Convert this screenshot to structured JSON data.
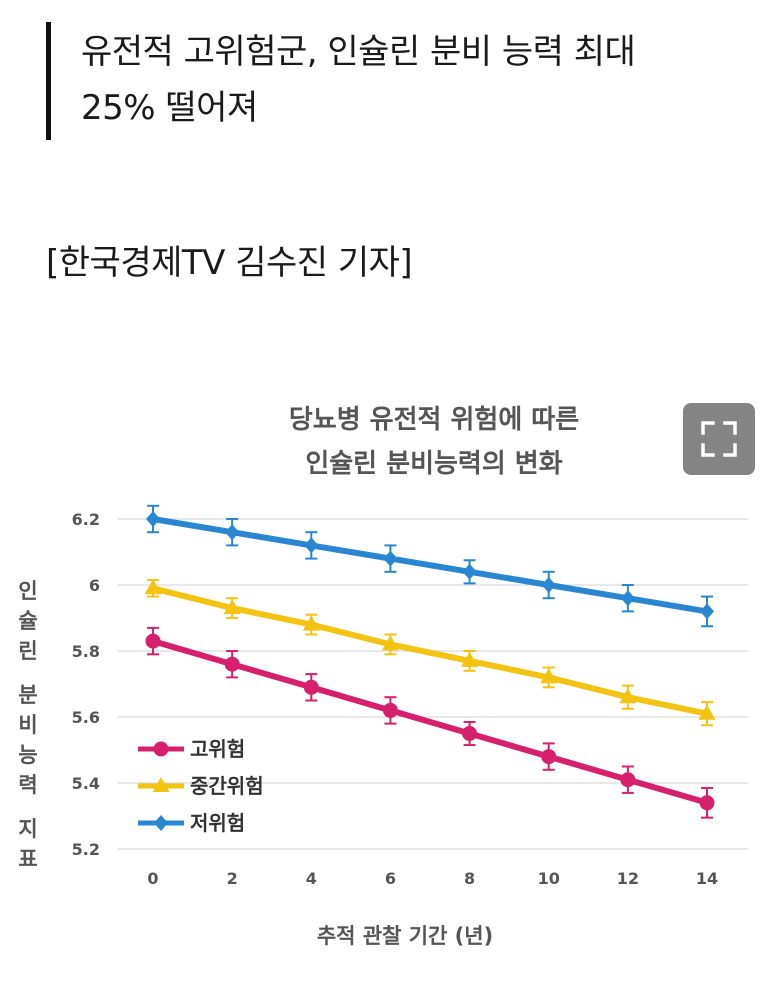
{
  "article": {
    "headline_line1": "유전적 고위험군, 인슐린 분비 능력 최대",
    "headline_line2": "25% 떨어져",
    "byline": "[한국경제TV 김수진 기자]"
  },
  "expand_button": {
    "icon": "expand-icon",
    "color": "#6e6e6e"
  },
  "chart_data": {
    "type": "line",
    "title_lines": [
      "당뇨병 유전적 위험에 따른",
      "인슐린 분비능력의 변화"
    ],
    "xlabel": "추적 관찰 기간 (년)",
    "ylabel": "인슐린 분비능력 지표",
    "x": [
      0,
      2,
      4,
      6,
      8,
      10,
      12,
      14
    ],
    "xticks": [
      "0",
      "2",
      "4",
      "6",
      "8",
      "10",
      "12",
      "14"
    ],
    "yticks": [
      "5.2",
      "5.4",
      "5.6",
      "5.8",
      "6",
      "6.2"
    ],
    "ylim": [
      5.2,
      6.2
    ],
    "grid": true,
    "legend_position": "bottom-left",
    "series": [
      {
        "name": "고위험",
        "color": "#d6206d",
        "marker": "circle",
        "values": [
          5.83,
          5.76,
          5.69,
          5.62,
          5.55,
          5.48,
          5.41,
          5.34
        ],
        "error": [
          0.04,
          0.04,
          0.04,
          0.04,
          0.035,
          0.04,
          0.04,
          0.045
        ]
      },
      {
        "name": "중간위험",
        "color": "#f2c313",
        "marker": "triangle",
        "values": [
          5.99,
          5.93,
          5.88,
          5.82,
          5.77,
          5.72,
          5.66,
          5.61
        ],
        "error": [
          0.025,
          0.03,
          0.03,
          0.03,
          0.03,
          0.03,
          0.035,
          0.035
        ]
      },
      {
        "name": "저위험",
        "color": "#2a86d1",
        "marker": "diamond",
        "values": [
          6.2,
          6.16,
          6.12,
          6.08,
          6.04,
          6.0,
          5.96,
          5.92
        ],
        "error": [
          0.04,
          0.04,
          0.04,
          0.04,
          0.035,
          0.04,
          0.04,
          0.045
        ]
      }
    ]
  }
}
